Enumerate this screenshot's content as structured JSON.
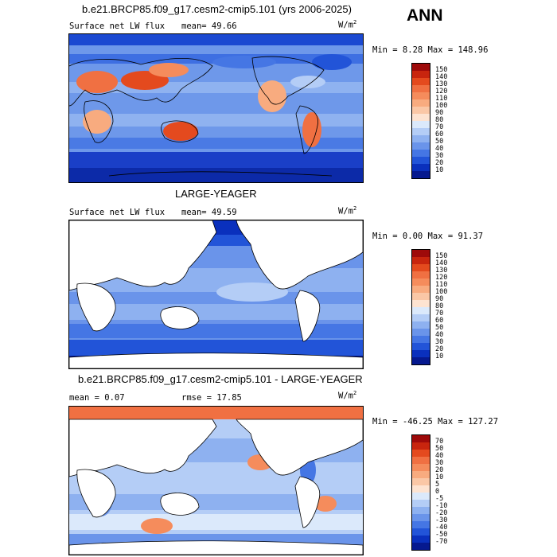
{
  "season": "ANN",
  "panels": [
    {
      "title": "b.e21.BRCP85.f09_g17.cesm2-cmip5.101 (yrs 2006-2025)",
      "left_label": "Surface net LW flux",
      "stat_text": "mean=  49.66",
      "units": "W/m",
      "units_sup": "2",
      "minmax": "Min =   8.28 Max = 148.96",
      "colorbar_ticks": [
        "150",
        "140",
        "130",
        "120",
        "110",
        "100",
        "90",
        "80",
        "70",
        "60",
        "50",
        "40",
        "30",
        "20",
        "10"
      ],
      "colorbar_colors": [
        "#9e0a0a",
        "#c8250e",
        "#e44a1e",
        "#f07042",
        "#f58c5c",
        "#f8ab7f",
        "#fac7a6",
        "#fde3d1",
        "#dbe9fb",
        "#b4cdf6",
        "#8eb1f0",
        "#6a94ea",
        "#4576e4",
        "#2254d8",
        "#0a30bd",
        "#06198f"
      ]
    },
    {
      "title": "LARGE-YEAGER",
      "left_label": "Surface net LW flux",
      "stat_text": "mean=  49.59",
      "units": "W/m",
      "units_sup": "2",
      "minmax": "Min =   0.00 Max =  91.37",
      "colorbar_ticks": [
        "150",
        "140",
        "130",
        "120",
        "110",
        "100",
        "90",
        "80",
        "70",
        "60",
        "50",
        "40",
        "30",
        "20",
        "10"
      ],
      "colorbar_colors": [
        "#9e0a0a",
        "#c8250e",
        "#e44a1e",
        "#f07042",
        "#f58c5c",
        "#f8ab7f",
        "#fac7a6",
        "#fde3d1",
        "#dbe9fb",
        "#b4cdf6",
        "#8eb1f0",
        "#6a94ea",
        "#4576e4",
        "#2254d8",
        "#0a30bd",
        "#06198f"
      ]
    },
    {
      "title": "b.e21.BRCP85.f09_g17.cesm2-cmip5.101 - LARGE-YEAGER",
      "left_label": "mean =   0.07",
      "stat_text": "rmse =  17.85",
      "units": "W/m",
      "units_sup": "2",
      "minmax": "Min = -46.25 Max = 127.27",
      "colorbar_ticks": [
        "70",
        "50",
        "40",
        "30",
        "20",
        "10",
        "5",
        "0",
        "-5",
        "-10",
        "-20",
        "-30",
        "-40",
        "-50",
        "-70"
      ],
      "colorbar_colors": [
        "#9e0a0a",
        "#c8250e",
        "#e44a1e",
        "#f07042",
        "#f58c5c",
        "#f8ab7f",
        "#fac7a6",
        "#fde3d1",
        "#dbe9fb",
        "#b4cdf6",
        "#8eb1f0",
        "#6a94ea",
        "#4576e4",
        "#2254d8",
        "#0a30bd",
        "#06198f"
      ]
    }
  ]
}
